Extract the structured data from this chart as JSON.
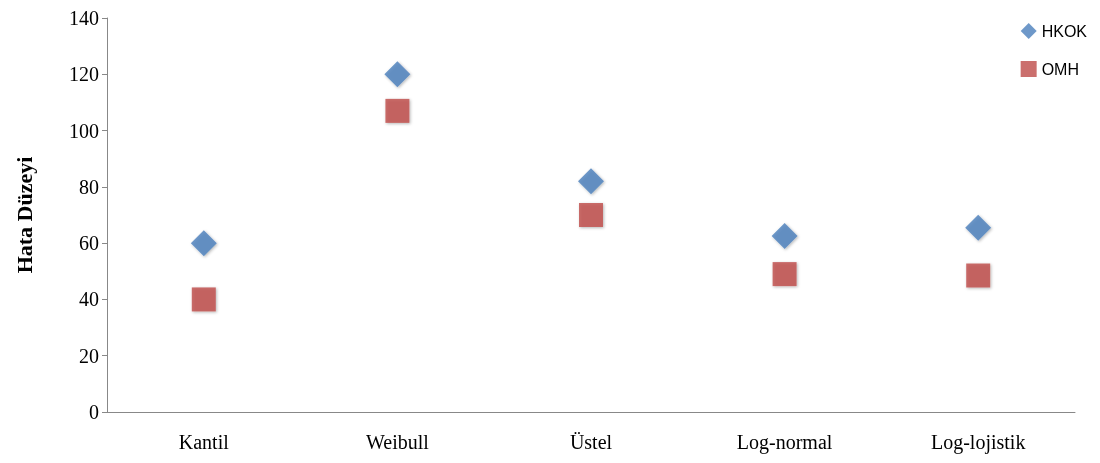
{
  "chart_data": {
    "type": "scatter",
    "ylabel": "Hata Düzeyi",
    "categories": [
      "Kantil",
      "Weibull",
      "Üstel",
      "Log-normal",
      "Log-lojistik"
    ],
    "series": [
      {
        "name": "HKOK",
        "color": "#4a7ebb",
        "marker": "diamond",
        "values": [
          60,
          120,
          82,
          62.5,
          65.5
        ]
      },
      {
        "name": "OMH",
        "color": "#be4b48",
        "marker": "square",
        "values": [
          40,
          107,
          70,
          49,
          48.5
        ]
      }
    ],
    "ylim": [
      0,
      140
    ],
    "yticks": [
      0,
      20,
      40,
      60,
      80,
      100,
      120,
      140
    ],
    "grid": false,
    "legend": "top right"
  }
}
